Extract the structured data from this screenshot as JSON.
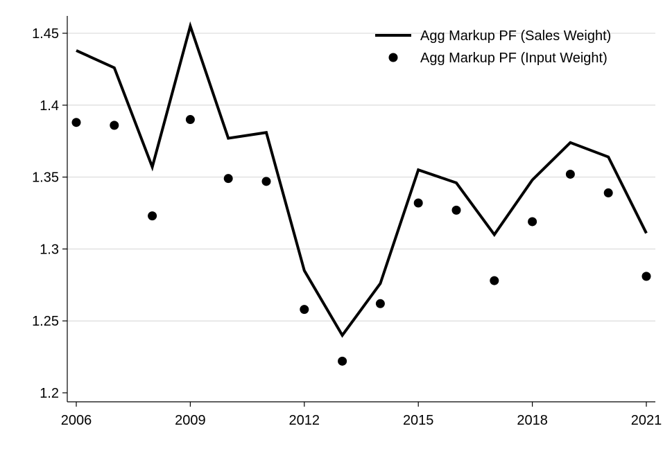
{
  "chart_data": {
    "type": "line",
    "title": "",
    "xlabel": "",
    "ylabel": "",
    "x": [
      2006,
      2007,
      2008,
      2009,
      2010,
      2011,
      2012,
      2013,
      2014,
      2015,
      2016,
      2017,
      2018,
      2019,
      2020,
      2021
    ],
    "xlim": [
      2006,
      2021
    ],
    "ylim": [
      1.2,
      1.46
    ],
    "x_ticks": [
      2006,
      2009,
      2012,
      2015,
      2018,
      2021
    ],
    "x_tick_labels": [
      "2006",
      "2009",
      "2012",
      "2015",
      "2018",
      "2021"
    ],
    "y_ticks": [
      1.2,
      1.25,
      1.3,
      1.35,
      1.4,
      1.45
    ],
    "y_tick_labels": [
      "1.2",
      "1.25",
      "1.3",
      "1.35",
      "1.4",
      "1.45"
    ],
    "grid": "horizontal",
    "legend_position": "top-right",
    "series": [
      {
        "name": "Agg Markup PF (Sales Weight)",
        "style": "line",
        "color": "#000000",
        "values": [
          1.438,
          1.426,
          1.357,
          1.455,
          1.377,
          1.381,
          1.285,
          1.24,
          1.276,
          1.355,
          1.346,
          1.31,
          1.348,
          1.374,
          1.364,
          1.311
        ]
      },
      {
        "name": "Agg Markup PF (Input Weight)",
        "style": "scatter",
        "color": "#000000",
        "values": [
          1.388,
          1.386,
          1.323,
          1.39,
          1.349,
          1.347,
          1.258,
          1.222,
          1.262,
          1.332,
          1.327,
          1.278,
          1.319,
          1.352,
          1.339,
          1.281
        ]
      }
    ]
  }
}
